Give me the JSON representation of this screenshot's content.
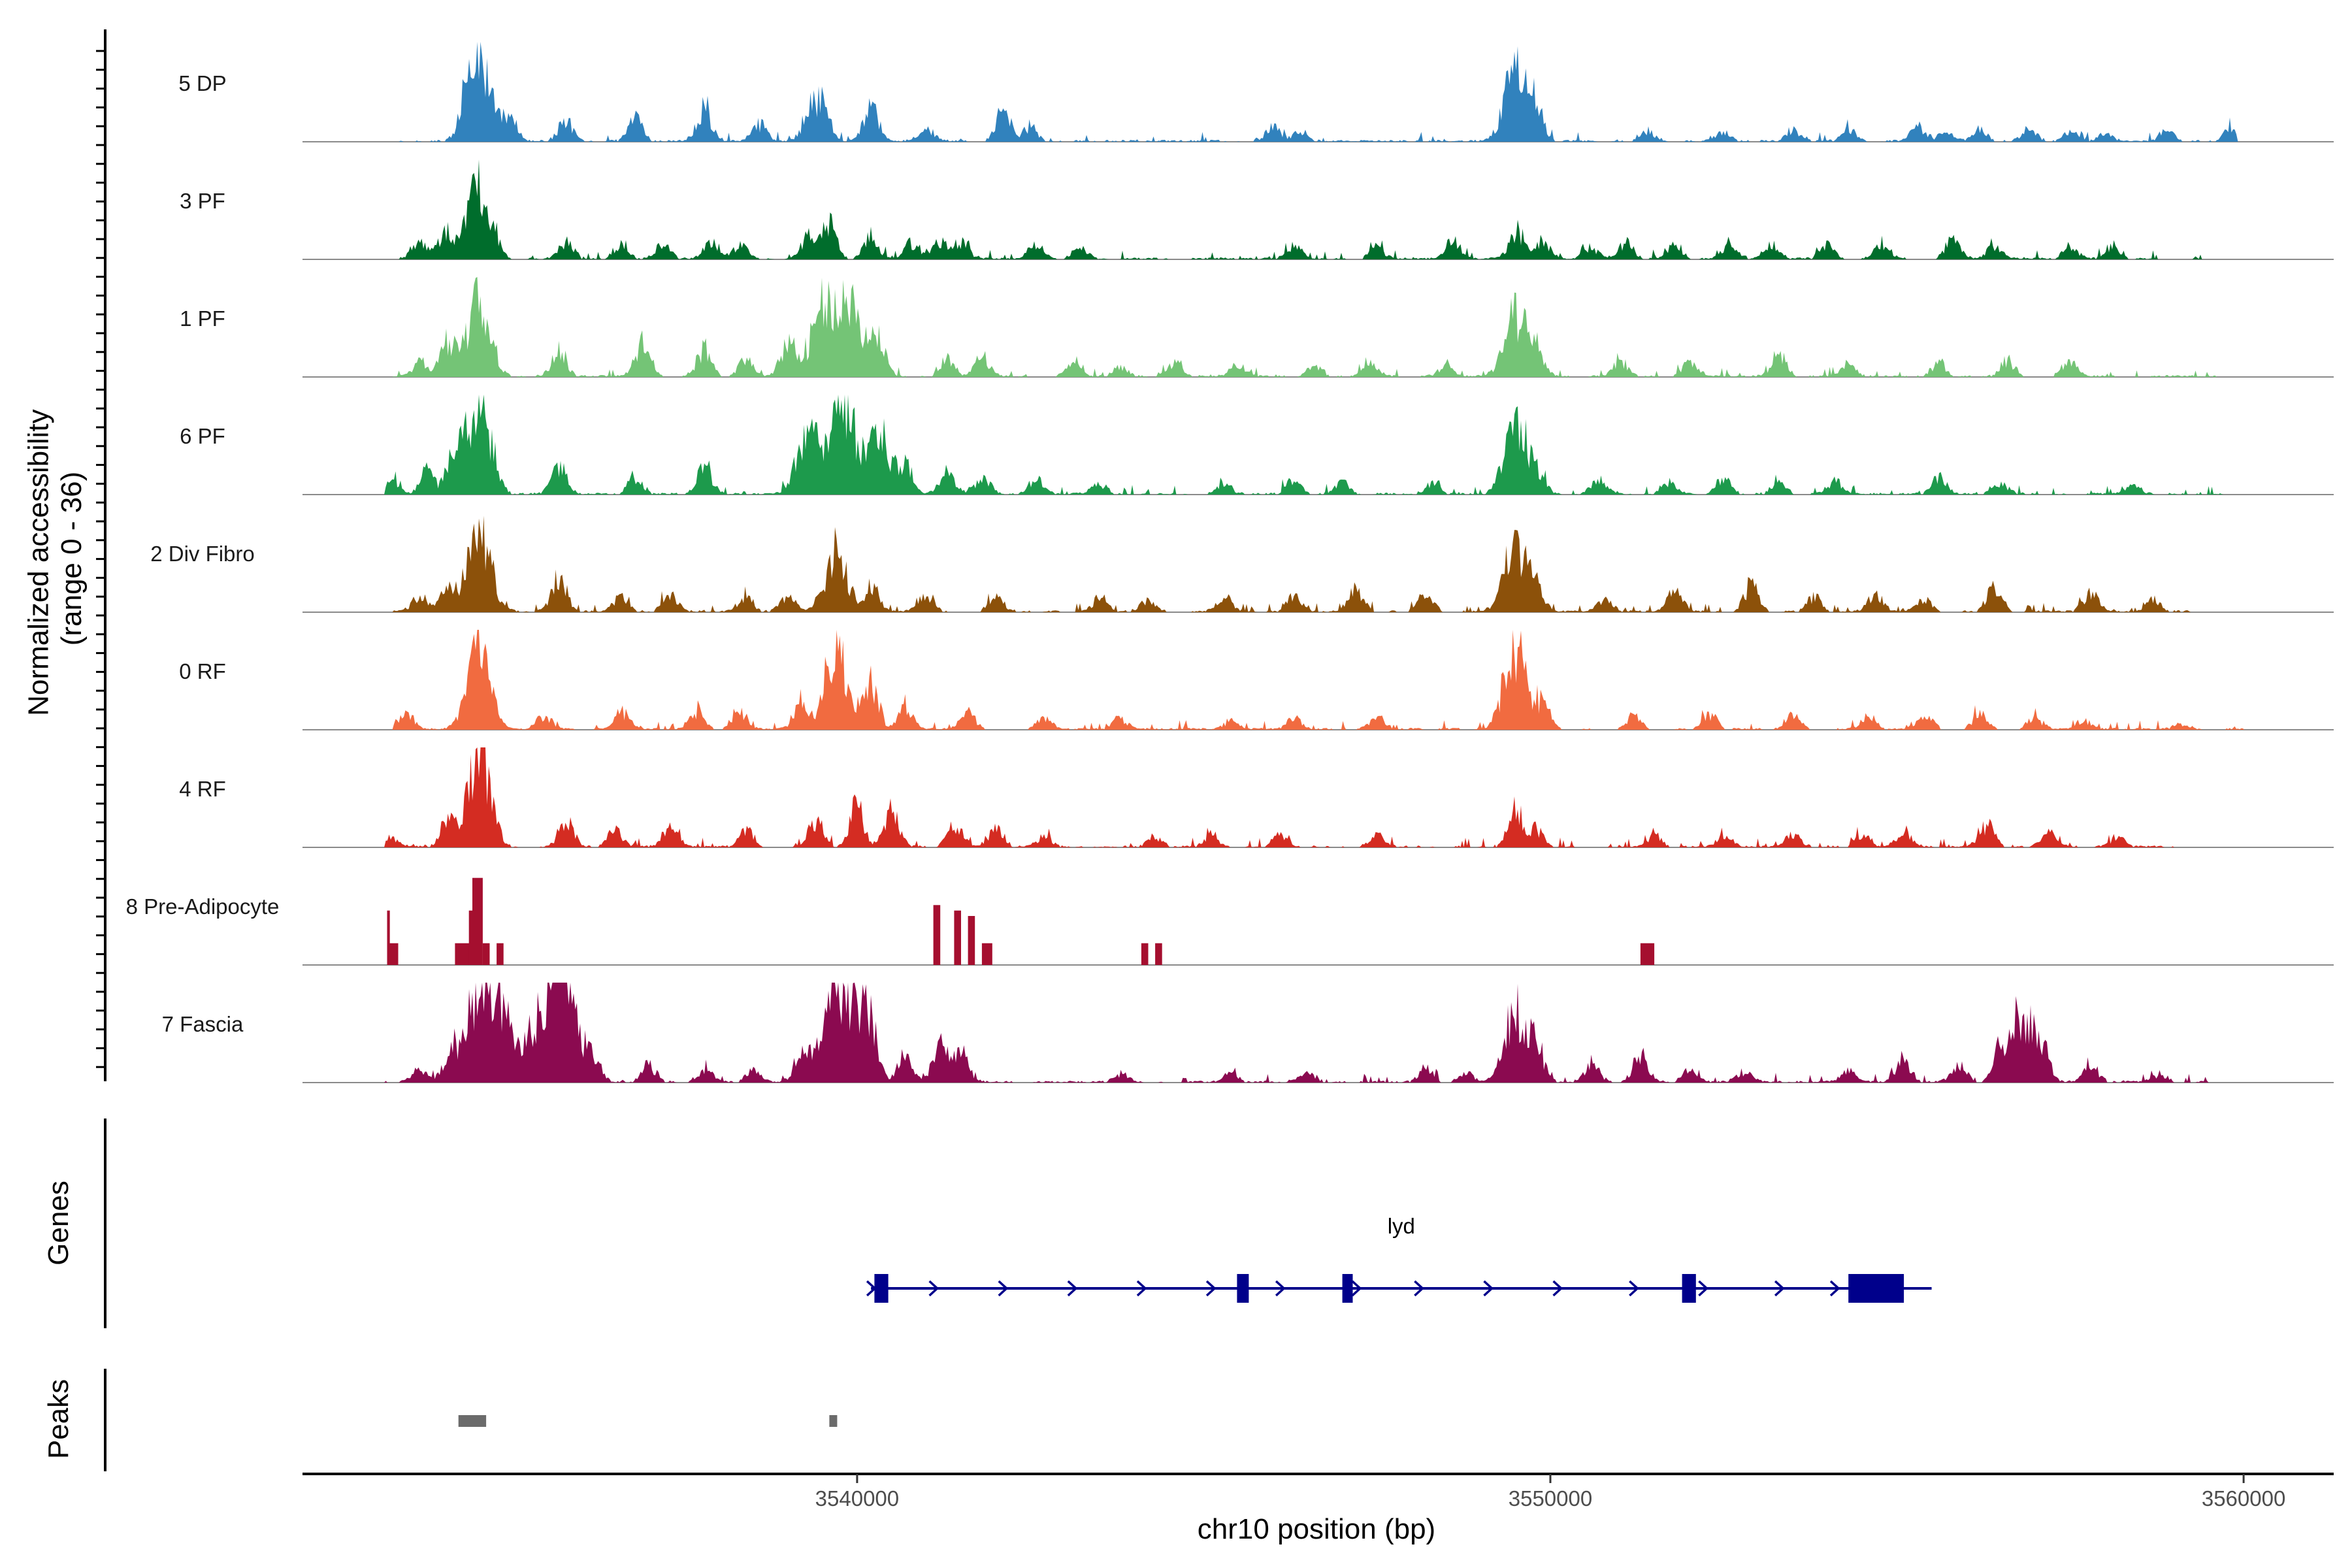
{
  "chart_data": {
    "type": "area",
    "title": "",
    "chromosome": "chr10",
    "region": [
      3532000,
      3561300
    ],
    "xlabel": "chr10 position (bp)",
    "ylabel_line1": "Normalized accessibility",
    "ylabel_line2": "(range 0 - 36)",
    "ylim": [
      0,
      36
    ],
    "x_ticks": [
      3540000,
      3550000,
      3560000
    ],
    "x_tick_labels": [
      "3540000",
      "3550000",
      "3560000"
    ],
    "genes_label": "Genes",
    "peaks_label": "Peaks",
    "tracks": [
      {
        "name": "5 DP",
        "color": "#3182bd",
        "peaks": [
          [
            3534550,
            32
          ],
          [
            3534400,
            10
          ],
          [
            3535000,
            8
          ],
          [
            3535800,
            7
          ],
          [
            3536800,
            8
          ],
          [
            3537800,
            12
          ],
          [
            3538600,
            6
          ],
          [
            3539500,
            14
          ],
          [
            3539300,
            8
          ],
          [
            3540200,
            12
          ],
          [
            3541000,
            5
          ],
          [
            3542100,
            10
          ],
          [
            3542500,
            5
          ],
          [
            3546000,
            5
          ],
          [
            3546400,
            4
          ],
          [
            3549500,
            26
          ],
          [
            3549800,
            10
          ],
          [
            3551400,
            4
          ],
          [
            3552500,
            3
          ],
          [
            3553500,
            4
          ],
          [
            3554300,
            4
          ],
          [
            3555300,
            5
          ],
          [
            3555700,
            3
          ],
          [
            3556200,
            4
          ],
          [
            3556900,
            4
          ],
          [
            3557500,
            3
          ],
          [
            3558000,
            3
          ],
          [
            3558900,
            4
          ],
          [
            3559800,
            4
          ]
        ],
        "noise": 0.09,
        "sparsity": 0.3,
        "noise_from": 3533400,
        "noise_to": 3559900
      },
      {
        "name": "3 PF",
        "color": "#006d2c",
        "peaks": [
          [
            3534550,
            26
          ],
          [
            3534100,
            10
          ],
          [
            3533700,
            6
          ],
          [
            3535800,
            6
          ],
          [
            3536600,
            6
          ],
          [
            3537200,
            5
          ],
          [
            3537900,
            6
          ],
          [
            3538300,
            5
          ],
          [
            3539300,
            8
          ],
          [
            3539600,
            12
          ],
          [
            3540200,
            7
          ],
          [
            3540800,
            6
          ],
          [
            3541200,
            7
          ],
          [
            3541500,
            6
          ],
          [
            3542600,
            5
          ],
          [
            3543200,
            4
          ],
          [
            3546300,
            5
          ],
          [
            3547500,
            4
          ],
          [
            3548600,
            6
          ],
          [
            3549500,
            10
          ],
          [
            3549900,
            6
          ],
          [
            3550600,
            4
          ],
          [
            3551100,
            6
          ],
          [
            3551800,
            5
          ],
          [
            3552600,
            6
          ],
          [
            3553200,
            5
          ],
          [
            3554000,
            5
          ],
          [
            3554800,
            6
          ],
          [
            3555800,
            7
          ],
          [
            3556400,
            5
          ],
          [
            3557500,
            4
          ],
          [
            3558100,
            4
          ]
        ],
        "noise": 0.16,
        "sparsity": 0.15,
        "noise_from": 3533400,
        "noise_to": 3559400
      },
      {
        "name": "1 PF",
        "color": "#74c476",
        "peaks": [
          [
            3534550,
            28
          ],
          [
            3534100,
            12
          ],
          [
            3533700,
            5
          ],
          [
            3535700,
            10
          ],
          [
            3536900,
            12
          ],
          [
            3537800,
            10
          ],
          [
            3538400,
            6
          ],
          [
            3539000,
            12
          ],
          [
            3539500,
            24
          ],
          [
            3539900,
            26
          ],
          [
            3540300,
            14
          ],
          [
            3541300,
            6
          ],
          [
            3541800,
            7
          ],
          [
            3543100,
            5
          ],
          [
            3543800,
            4
          ],
          [
            3544600,
            5
          ],
          [
            3545500,
            4
          ],
          [
            3546600,
            4
          ],
          [
            3547400,
            5
          ],
          [
            3548500,
            4
          ],
          [
            3549500,
            22
          ],
          [
            3549800,
            8
          ],
          [
            3551000,
            6
          ],
          [
            3552000,
            5
          ],
          [
            3553300,
            8
          ],
          [
            3554300,
            4
          ],
          [
            3555600,
            5
          ],
          [
            3556600,
            6
          ],
          [
            3557500,
            5
          ]
        ],
        "noise": 0.13,
        "sparsity": 0.12,
        "noise_from": 3533300,
        "noise_to": 3559600
      },
      {
        "name": "6 PF",
        "color": "#1d9a4c",
        "peaks": [
          [
            3534550,
            36
          ],
          [
            3534200,
            18
          ],
          [
            3533800,
            8
          ],
          [
            3533300,
            4
          ],
          [
            3535700,
            10
          ],
          [
            3536800,
            6
          ],
          [
            3537800,
            10
          ],
          [
            3539300,
            22
          ],
          [
            3539800,
            34
          ],
          [
            3540300,
            20
          ],
          [
            3540700,
            10
          ],
          [
            3541300,
            8
          ],
          [
            3541800,
            6
          ],
          [
            3542600,
            5
          ],
          [
            3543500,
            4
          ],
          [
            3545300,
            4
          ],
          [
            3546300,
            5
          ],
          [
            3547000,
            4
          ],
          [
            3548300,
            4
          ],
          [
            3549500,
            24
          ],
          [
            3549800,
            8
          ],
          [
            3550700,
            5
          ],
          [
            3551700,
            4
          ],
          [
            3552500,
            6
          ],
          [
            3553300,
            4
          ],
          [
            3554100,
            5
          ],
          [
            3555600,
            6
          ],
          [
            3556500,
            4
          ],
          [
            3558400,
            3
          ]
        ],
        "noise": 0.11,
        "sparsity": 0.3,
        "noise_from": 3533200,
        "noise_to": 3559700
      },
      {
        "name": "2 Div Fibro",
        "color": "#8c510a",
        "peaks": [
          [
            3534550,
            30
          ],
          [
            3534100,
            8
          ],
          [
            3533700,
            6
          ],
          [
            3535700,
            14
          ],
          [
            3536600,
            5
          ],
          [
            3537300,
            6
          ],
          [
            3538400,
            5
          ],
          [
            3539000,
            6
          ],
          [
            3539700,
            20
          ],
          [
            3540200,
            8
          ],
          [
            3541000,
            6
          ],
          [
            3542000,
            5
          ],
          [
            3543500,
            5
          ],
          [
            3544200,
            4
          ],
          [
            3545300,
            6
          ],
          [
            3546300,
            5
          ],
          [
            3547200,
            8
          ],
          [
            3548200,
            6
          ],
          [
            3549500,
            24
          ],
          [
            3549800,
            8
          ],
          [
            3550800,
            5
          ],
          [
            3551800,
            8
          ],
          [
            3552900,
            10
          ],
          [
            3553800,
            5
          ],
          [
            3554700,
            6
          ],
          [
            3555400,
            5
          ],
          [
            3556400,
            9
          ],
          [
            3557800,
            7
          ],
          [
            3558700,
            4
          ]
        ],
        "noise": 0.14,
        "sparsity": 0.15,
        "noise_from": 3533300,
        "noise_to": 3559400
      },
      {
        "name": "0 RF",
        "color": "#f16b40",
        "peaks": [
          [
            3534550,
            30
          ],
          [
            3533500,
            5
          ],
          [
            3535500,
            5
          ],
          [
            3536600,
            6
          ],
          [
            3537700,
            7
          ],
          [
            3538300,
            6
          ],
          [
            3539200,
            10
          ],
          [
            3539700,
            28
          ],
          [
            3540200,
            18
          ],
          [
            3540700,
            8
          ],
          [
            3541600,
            6
          ],
          [
            3542700,
            5
          ],
          [
            3543800,
            4
          ],
          [
            3545400,
            3
          ],
          [
            3546300,
            4
          ],
          [
            3547500,
            4
          ],
          [
            3549500,
            28
          ],
          [
            3549900,
            8
          ],
          [
            3551200,
            5
          ],
          [
            3552300,
            5
          ],
          [
            3553500,
            6
          ],
          [
            3554600,
            5
          ],
          [
            3555400,
            5
          ],
          [
            3556200,
            6
          ],
          [
            3557000,
            4
          ],
          [
            3557700,
            3
          ],
          [
            3559100,
            2
          ]
        ],
        "noise": 0.13,
        "sparsity": 0.08,
        "noise_from": 3533300,
        "noise_to": 3560000
      },
      {
        "name": "4 RF",
        "color": "#d42c22",
        "peaks": [
          [
            3534550,
            32
          ],
          [
            3534100,
            10
          ],
          [
            3533300,
            3
          ],
          [
            3535800,
            10
          ],
          [
            3536500,
            6
          ],
          [
            3537300,
            8
          ],
          [
            3538400,
            6
          ],
          [
            3539400,
            10
          ],
          [
            3540000,
            14
          ],
          [
            3540500,
            12
          ],
          [
            3541400,
            8
          ],
          [
            3542000,
            6
          ],
          [
            3542700,
            4
          ],
          [
            3544300,
            4
          ],
          [
            3545100,
            4
          ],
          [
            3546100,
            4
          ],
          [
            3547500,
            4
          ],
          [
            3549500,
            14
          ],
          [
            3549800,
            6
          ],
          [
            3551500,
            4
          ],
          [
            3552500,
            4
          ],
          [
            3553500,
            5
          ],
          [
            3554500,
            4
          ],
          [
            3555100,
            6
          ],
          [
            3556300,
            8
          ],
          [
            3557200,
            5
          ],
          [
            3558200,
            4
          ],
          [
            3559900,
            1
          ]
        ],
        "noise": 0.13,
        "sparsity": 0.22,
        "noise_from": 3533200,
        "noise_to": 3559000
      },
      {
        "name": "8 Pre-Adipocyte",
        "color": "#a50f2f",
        "bars": [
          [
            3533220,
            3533380,
            8
          ],
          [
            3533220,
            3533260,
            20
          ],
          [
            3534200,
            3534450,
            8
          ],
          [
            3534450,
            3534600,
            32
          ],
          [
            3534400,
            3534500,
            20
          ],
          [
            3534600,
            3534700,
            8
          ],
          [
            3534800,
            3534900,
            8
          ],
          [
            3541100,
            3541200,
            22
          ],
          [
            3541400,
            3541500,
            20
          ],
          [
            3541600,
            3541700,
            18
          ],
          [
            3541800,
            3541950,
            8
          ],
          [
            3544100,
            3544200,
            8
          ],
          [
            3544300,
            3544400,
            8
          ],
          [
            3551300,
            3551500,
            8
          ]
        ]
      },
      {
        "name": "7 Fascia",
        "color": "#8b0a50",
        "peaks": [
          [
            3534550,
            36
          ],
          [
            3534150,
            12
          ],
          [
            3533700,
            5
          ],
          [
            3534900,
            22
          ],
          [
            3535300,
            12
          ],
          [
            3535600,
            30
          ],
          [
            3535800,
            36
          ],
          [
            3536200,
            8
          ],
          [
            3537000,
            6
          ],
          [
            3537800,
            5
          ],
          [
            3538500,
            4
          ],
          [
            3539200,
            10
          ],
          [
            3539600,
            20
          ],
          [
            3539900,
            28
          ],
          [
            3540200,
            18
          ],
          [
            3540700,
            10
          ],
          [
            3541200,
            14
          ],
          [
            3541500,
            10
          ],
          [
            3543800,
            3
          ],
          [
            3545400,
            3
          ],
          [
            3546500,
            3
          ],
          [
            3548200,
            5
          ],
          [
            3548800,
            3
          ],
          [
            3549500,
            24
          ],
          [
            3549800,
            10
          ],
          [
            3550600,
            6
          ],
          [
            3551300,
            10
          ],
          [
            3552000,
            4
          ],
          [
            3552800,
            4
          ],
          [
            3554300,
            4
          ],
          [
            3555100,
            8
          ],
          [
            3555900,
            6
          ],
          [
            3556500,
            10
          ],
          [
            3556800,
            24
          ],
          [
            3557100,
            10
          ],
          [
            3557800,
            6
          ],
          [
            3558800,
            3
          ]
        ],
        "noise": 0.12,
        "sparsity": 0.2,
        "noise_from": 3533200,
        "noise_to": 3559500
      }
    ],
    "genes": [
      {
        "name": "lyd",
        "color": "#00008b",
        "start": 3540200,
        "end": 3555500,
        "strand": "+",
        "exons": [
          [
            3540250,
            3540450
          ],
          [
            3545480,
            3545650
          ],
          [
            3547000,
            3547150
          ],
          [
            3551900,
            3552100
          ],
          [
            3554300,
            3555100
          ]
        ],
        "arrows": [
          3540200,
          3541100,
          3542100,
          3543100,
          3544100,
          3545100,
          3546100,
          3547200,
          3548100,
          3549100,
          3550100,
          3551200,
          3552200,
          3553300,
          3554100
        ]
      }
    ],
    "peak_regions": [
      [
        3534250,
        3534650
      ],
      [
        3539600,
        3539700
      ]
    ],
    "peak_color": "#6b6b6b"
  }
}
